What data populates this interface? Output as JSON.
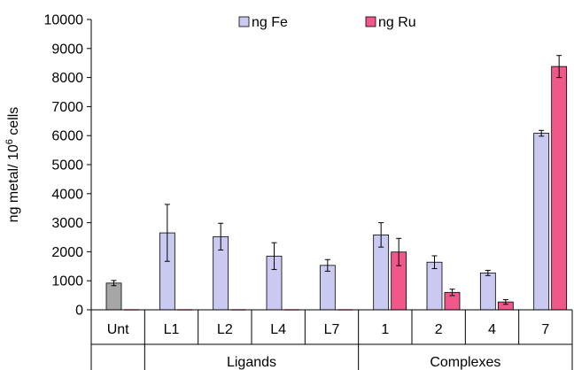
{
  "chart_data": {
    "type": "bar",
    "ylabel": "ng metal/ 10",
    "ylabel_sup": "6",
    "ylabel_suffix": " cells",
    "ylim": [
      0,
      10000
    ],
    "yticks": [
      "0",
      "1000",
      "2000",
      "3000",
      "4000",
      "5000",
      "6000",
      "7000",
      "8000",
      "9000",
      "10000"
    ],
    "legend_position": "top-center",
    "categories": [
      "Unt",
      "L1",
      "L2",
      "L4",
      "L7",
      "1",
      "2",
      "4",
      "7"
    ],
    "groups": [
      {
        "label": "Ligands",
        "from": 1,
        "to": 4
      },
      {
        "label": "Complexes",
        "from": 5,
        "to": 8
      }
    ],
    "untreated_color": "#a6a6a6",
    "series": [
      {
        "name": "ng Fe",
        "color": "#c9c9f2",
        "values": [
          920,
          2650,
          2520,
          1850,
          1530,
          2580,
          1640,
          1270,
          6080
        ],
        "errors": [
          90,
          980,
          460,
          460,
          200,
          420,
          220,
          90,
          100
        ]
      },
      {
        "name": "ng Ru",
        "color": "#f0588a",
        "values": [
          null,
          null,
          null,
          null,
          null,
          1990,
          600,
          270,
          8380
        ],
        "errors": [
          null,
          null,
          null,
          null,
          null,
          470,
          110,
          80,
          380
        ]
      }
    ]
  }
}
